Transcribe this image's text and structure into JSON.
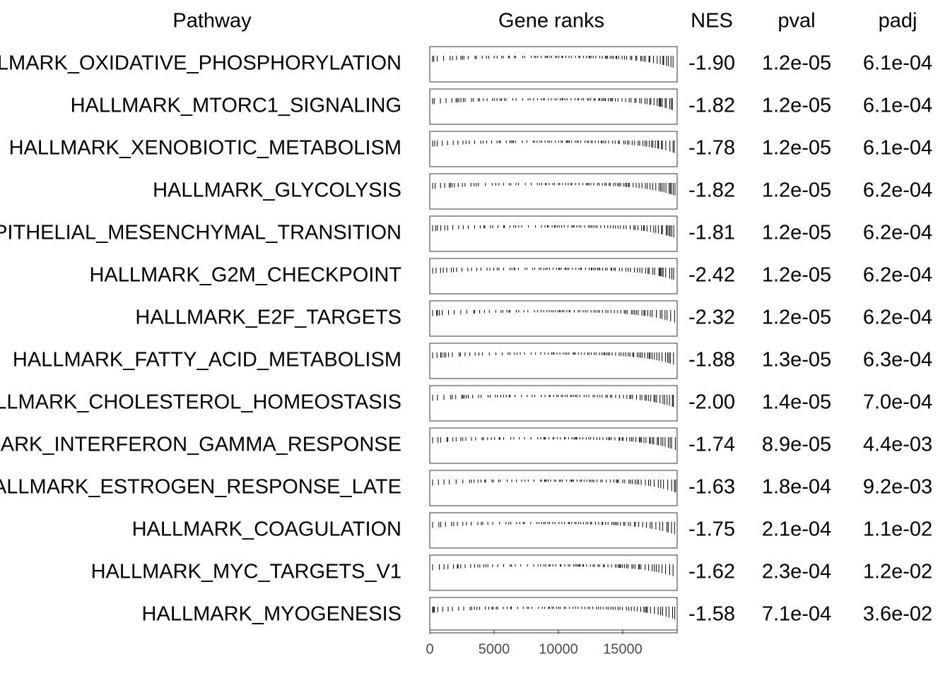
{
  "columns": [
    "Pathway",
    "Gene ranks",
    "NES",
    "pval",
    "padj"
  ],
  "rows": [
    {
      "pathway": "HALLMARK_OXIDATIVE_PHOSPHORYLATION",
      "nes": "-1.90",
      "pval": "1.2e-05",
      "padj": "6.1e-04"
    },
    {
      "pathway": "HALLMARK_MTORC1_SIGNALING",
      "nes": "-1.82",
      "pval": "1.2e-05",
      "padj": "6.1e-04"
    },
    {
      "pathway": "HALLMARK_XENOBIOTIC_METABOLISM",
      "nes": "-1.78",
      "pval": "1.2e-05",
      "padj": "6.1e-04"
    },
    {
      "pathway": "HALLMARK_GLYCOLYSIS",
      "nes": "-1.82",
      "pval": "1.2e-05",
      "padj": "6.2e-04"
    },
    {
      "pathway": "HALLMARK_EPITHELIAL_MESENCHYMAL_TRANSITION",
      "nes": "-1.81",
      "pval": "1.2e-05",
      "padj": "6.2e-04"
    },
    {
      "pathway": "HALLMARK_G2M_CHECKPOINT",
      "nes": "-2.42",
      "pval": "1.2e-05",
      "padj": "6.2e-04"
    },
    {
      "pathway": "HALLMARK_E2F_TARGETS",
      "nes": "-2.32",
      "pval": "1.2e-05",
      "padj": "6.2e-04"
    },
    {
      "pathway": "HALLMARK_FATTY_ACID_METABOLISM",
      "nes": "-1.88",
      "pval": "1.3e-05",
      "padj": "6.3e-04"
    },
    {
      "pathway": "HALLMARK_CHOLESTEROL_HOMEOSTASIS",
      "nes": "-2.00",
      "pval": "1.4e-05",
      "padj": "7.0e-04"
    },
    {
      "pathway": "HALLMARK_INTERFERON_GAMMA_RESPONSE",
      "nes": "-1.74",
      "pval": "8.9e-05",
      "padj": "4.4e-03"
    },
    {
      "pathway": "HALLMARK_ESTROGEN_RESPONSE_LATE",
      "nes": "-1.63",
      "pval": "1.8e-04",
      "padj": "9.2e-03"
    },
    {
      "pathway": "HALLMARK_COAGULATION",
      "nes": "-1.75",
      "pval": "2.1e-04",
      "padj": "1.1e-02"
    },
    {
      "pathway": "HALLMARK_MYC_TARGETS_V1",
      "nes": "-1.62",
      "pval": "2.3e-04",
      "padj": "1.2e-02"
    },
    {
      "pathway": "HALLMARK_MYOGENESIS",
      "nes": "-1.58",
      "pval": "7.1e-04",
      "padj": "3.6e-02"
    }
  ],
  "rank_axis": {
    "xlim": [
      0,
      19230
    ],
    "xticks": [
      0,
      5000,
      10000,
      15000
    ]
  }
}
